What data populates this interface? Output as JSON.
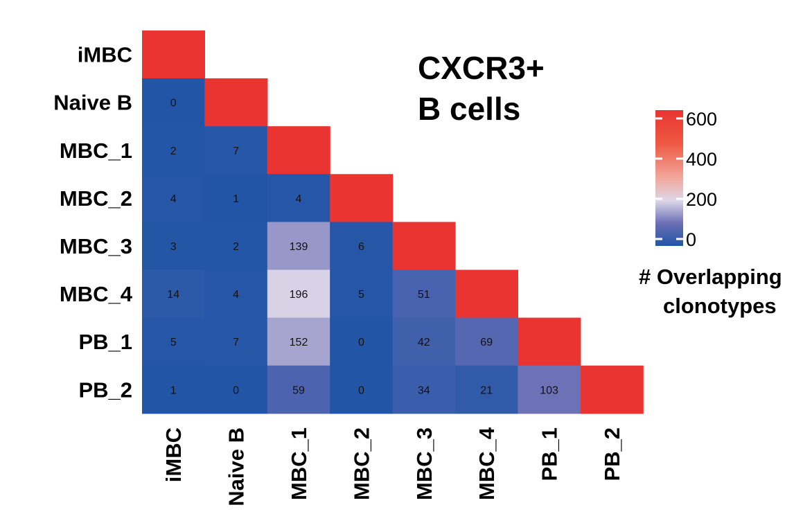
{
  "chart_data": {
    "type": "heatmap",
    "title_lines": [
      "CXCR3+",
      "B cells"
    ],
    "rows": [
      "iMBC",
      "Naive B",
      "MBC_1",
      "MBC_2",
      "MBC_3",
      "MBC_4",
      "PB_1",
      "PB_2"
    ],
    "columns": [
      "iMBC",
      "Naive B",
      "MBC_1",
      "MBC_2",
      "MBC_3",
      "MBC_4",
      "PB_1",
      "PB_2"
    ],
    "lower_triangle": [
      [],
      [
        0
      ],
      [
        2,
        7
      ],
      [
        4,
        1,
        4
      ],
      [
        3,
        2,
        139,
        6
      ],
      [
        14,
        4,
        196,
        5,
        51
      ],
      [
        5,
        7,
        152,
        0,
        42,
        69
      ],
      [
        1,
        0,
        59,
        0,
        34,
        21,
        103
      ]
    ],
    "diagonal": "saturated (≥600), unlabeled",
    "color_scale": {
      "stops": [
        {
          "value": 0,
          "color": "#2255a6"
        },
        {
          "value": 100,
          "color": "#6a6fb5"
        },
        {
          "value": 200,
          "color": "#ddd6e8"
        },
        {
          "value": 300,
          "color": "#f2a79c"
        },
        {
          "value": 450,
          "color": "#ee5a44"
        },
        {
          "value": 600,
          "color": "#ea3431"
        }
      ],
      "range": [
        0,
        600
      ]
    },
    "legend": {
      "ticks": [
        "600",
        "400",
        "200",
        "0"
      ],
      "tick_values": [
        600,
        400,
        200,
        0
      ],
      "title_lines": [
        "# Overlapping",
        "clonotypes"
      ],
      "position": "right"
    }
  }
}
